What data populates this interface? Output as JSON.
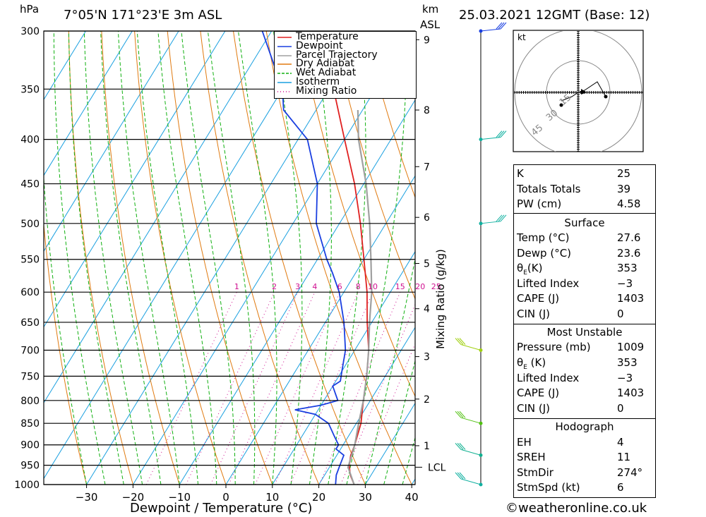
{
  "header": {
    "location": "7°05'N  171°23'E  3m  ASL",
    "datetime": "25.03.2021  12GMT  (Base: 12)",
    "hpa_label": "hPa",
    "km_label": "km",
    "asl_label": "ASL"
  },
  "legend": [
    {
      "label": "Temperature",
      "color": "#e02020",
      "style": "solid"
    },
    {
      "label": "Dewpoint",
      "color": "#1a3fe0",
      "style": "solid"
    },
    {
      "label": "Parcel Trajectory",
      "color": "#a0a0a0",
      "style": "solid"
    },
    {
      "label": "Dry Adiabat",
      "color": "#e07a10",
      "style": "solid"
    },
    {
      "label": "Wet Adiabat",
      "color": "#10b010",
      "style": "dashed"
    },
    {
      "label": "Isotherm",
      "color": "#1aa0e0",
      "style": "solid"
    },
    {
      "label": "Mixing Ratio",
      "color": "#d01090",
      "style": "dotted"
    }
  ],
  "chart_data": {
    "type": "line",
    "xlabel": "Dewpoint / Temperature (°C)",
    "ylabel_right": "Mixing Ratio (g/kg)",
    "x_ticks": [
      "−30",
      "−20",
      "−10",
      "0",
      "10",
      "20",
      "30",
      "40"
    ],
    "x_tick_values": [
      -30,
      -20,
      -10,
      0,
      10,
      20,
      30,
      40
    ],
    "xlim": [
      -40,
      40
    ],
    "ylim_hpa": [
      1000,
      300
    ],
    "y_scale": "log",
    "pressure_levels": [
      "300",
      "350",
      "400",
      "450",
      "500",
      "550",
      "600",
      "650",
      "700",
      "750",
      "800",
      "850",
      "900",
      "950",
      "1000"
    ],
    "km_ticks": [
      "9",
      "8",
      "7",
      "6",
      "5",
      "4",
      "3",
      "2",
      "1"
    ],
    "km_tick_pressures": [
      307,
      370,
      430,
      492,
      556,
      627,
      712,
      797,
      902
    ],
    "lcl_label": "LCL",
    "lcl_pressure": 955,
    "mixing_ratio_labels": [
      "1",
      "2",
      "3",
      "4",
      "6",
      "8",
      "10",
      "15",
      "20",
      "25"
    ],
    "mixing_ratio_values": [
      1,
      2,
      3,
      4,
      6,
      8,
      10,
      15,
      20,
      25
    ],
    "series": [
      {
        "name": "Temperature",
        "points": [
          [
            1000,
            27.6
          ],
          [
            975,
            25.5
          ],
          [
            950,
            24
          ],
          [
            925,
            23
          ],
          [
            900,
            22.5
          ],
          [
            850,
            21
          ],
          [
            800,
            18.5
          ],
          [
            750,
            16
          ],
          [
            700,
            13
          ],
          [
            650,
            9
          ],
          [
            600,
            5
          ],
          [
            550,
            0
          ],
          [
            500,
            -5.5
          ],
          [
            450,
            -12
          ],
          [
            400,
            -20
          ],
          [
            350,
            -29
          ],
          [
            300,
            -40
          ]
        ]
      },
      {
        "name": "Dewpoint",
        "points": [
          [
            1000,
            23.6
          ],
          [
            975,
            22.5
          ],
          [
            950,
            22
          ],
          [
            925,
            21.5
          ],
          [
            910,
            19
          ],
          [
            900,
            19
          ],
          [
            880,
            17
          ],
          [
            850,
            14
          ],
          [
            830,
            10
          ],
          [
            820,
            5
          ],
          [
            810,
            10
          ],
          [
            800,
            13
          ],
          [
            770,
            10
          ],
          [
            760,
            11
          ],
          [
            740,
            10
          ],
          [
            700,
            8
          ],
          [
            650,
            4
          ],
          [
            600,
            -1
          ],
          [
            570,
            -5
          ],
          [
            550,
            -8
          ],
          [
            500,
            -15
          ],
          [
            450,
            -20
          ],
          [
            400,
            -28
          ],
          [
            370,
            -37
          ],
          [
            350,
            -40
          ],
          [
            300,
            -52
          ]
        ]
      },
      {
        "name": "Parcel Trajectory",
        "points": [
          [
            1000,
            27.6
          ],
          [
            955,
            24
          ],
          [
            900,
            22.5
          ],
          [
            850,
            20.5
          ],
          [
            800,
            18.5
          ],
          [
            750,
            16
          ],
          [
            700,
            13
          ],
          [
            650,
            9.5
          ],
          [
            600,
            6
          ],
          [
            550,
            1.5
          ],
          [
            500,
            -3.5
          ],
          [
            450,
            -9.5
          ],
          [
            400,
            -17
          ],
          [
            370,
            -21
          ]
        ]
      }
    ]
  },
  "wind_barbs_pressures": [
    300,
    400,
    500,
    700,
    850,
    925,
    1000
  ],
  "hodograph": {
    "unit": "kt",
    "ring_labels": [
      "15",
      "30",
      "45"
    ],
    "points_kt": [
      [
        -8,
        -4
      ],
      [
        -3,
        -2
      ],
      [
        0,
        0
      ],
      [
        3,
        1
      ],
      [
        9,
        5
      ],
      [
        13,
        -2
      ]
    ]
  },
  "stats": {
    "k_label": "K",
    "k": "25",
    "tt_label": "Totals Totals",
    "tt": "39",
    "pw_label": "PW (cm)",
    "pw": "4.58",
    "surface_title": "Surface",
    "temp_label": "Temp (°C)",
    "temp": "27.6",
    "dewp_label": "Dewp (°C)",
    "dewp": "23.6",
    "theta_label": "θ",
    "theta_sub": "E",
    "theta_suffix": "(K)",
    "theta": "353",
    "li_label": "Lifted Index",
    "li": "−3",
    "cape_label": "CAPE (J)",
    "cape": "1403",
    "cin_label": "CIN (J)",
    "cin": "0",
    "mu_title": "Most Unstable",
    "mu_pressure_label": "Pressure (mb)",
    "mu_pressure": "1009",
    "mu_theta_suffix": " (K)",
    "mu_theta": "353",
    "mu_li_label": "Lifted Index",
    "mu_li": "−3",
    "mu_cape_label": "CAPE (J)",
    "mu_cape": "1403",
    "mu_cin_label": "CIN (J)",
    "mu_cin": "0",
    "hodo_title": "Hodograph",
    "eh_label": "EH",
    "eh": "4",
    "sreh_label": "SREH",
    "sreh": "11",
    "stmdir_label": "StmDir",
    "stmdir": "274°",
    "stmspd_label": "StmSpd (kt)",
    "stmspd": "6"
  },
  "footer": {
    "copyright": "©weatheronline.co.uk"
  }
}
